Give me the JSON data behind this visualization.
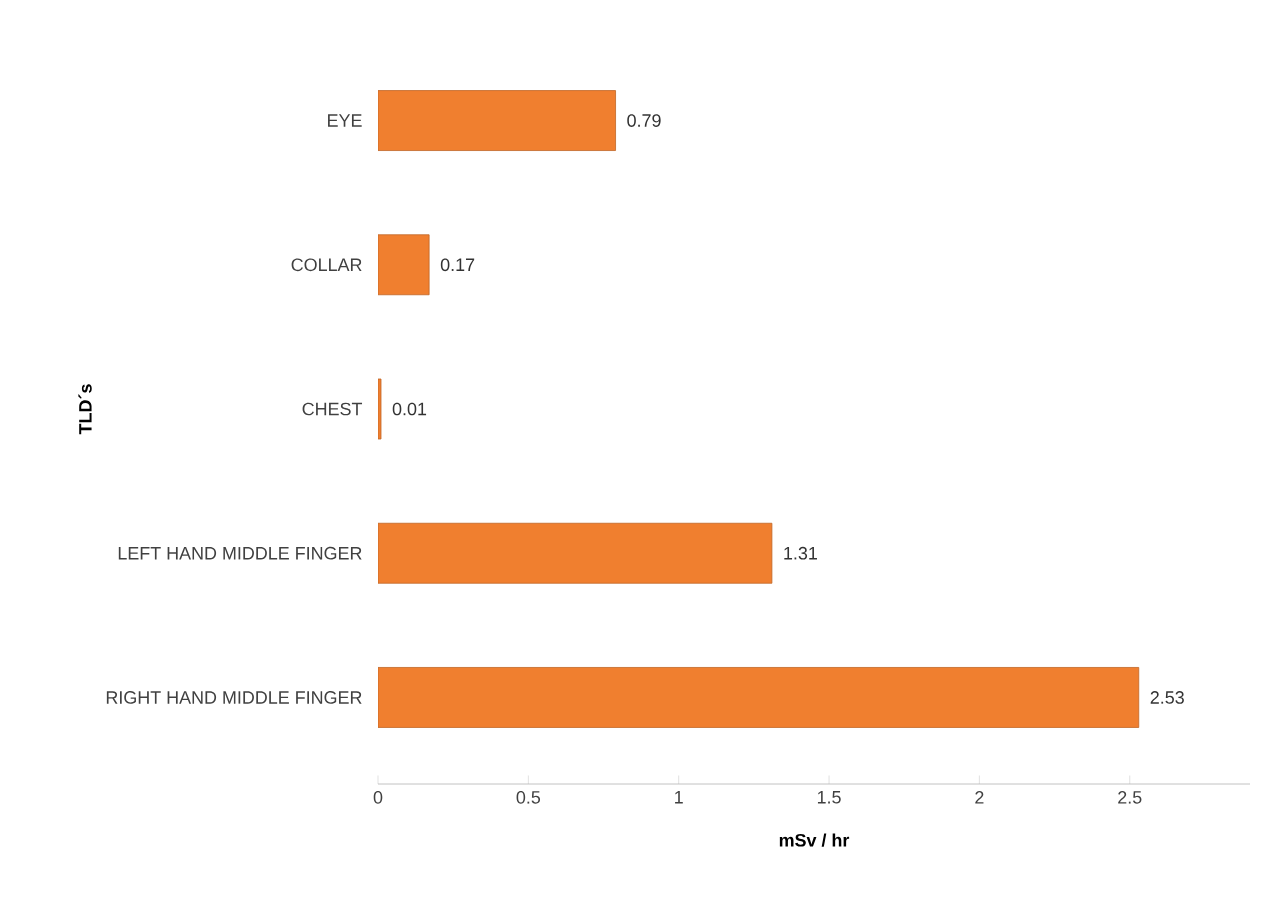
{
  "chart_data": {
    "type": "bar",
    "orientation": "horizontal",
    "xlabel": "mSv / hr",
    "ylabel": "TLD´s",
    "categories": [
      "EYE",
      "COLLAR",
      "CHEST",
      "LEFT HAND MIDDLE FINGER",
      "RIGHT HAND MIDDLE FINGER"
    ],
    "values": [
      0.79,
      0.17,
      0.01,
      1.31,
      2.53
    ],
    "color": "#f07f2f",
    "value_labels": [
      "0.79",
      "0.17",
      "0.01",
      "1.31",
      "2.53"
    ],
    "xlim": [
      0,
      2.9
    ],
    "xticks": [
      0,
      0.5,
      1,
      1.5,
      2,
      2.5
    ],
    "grid": false
  }
}
